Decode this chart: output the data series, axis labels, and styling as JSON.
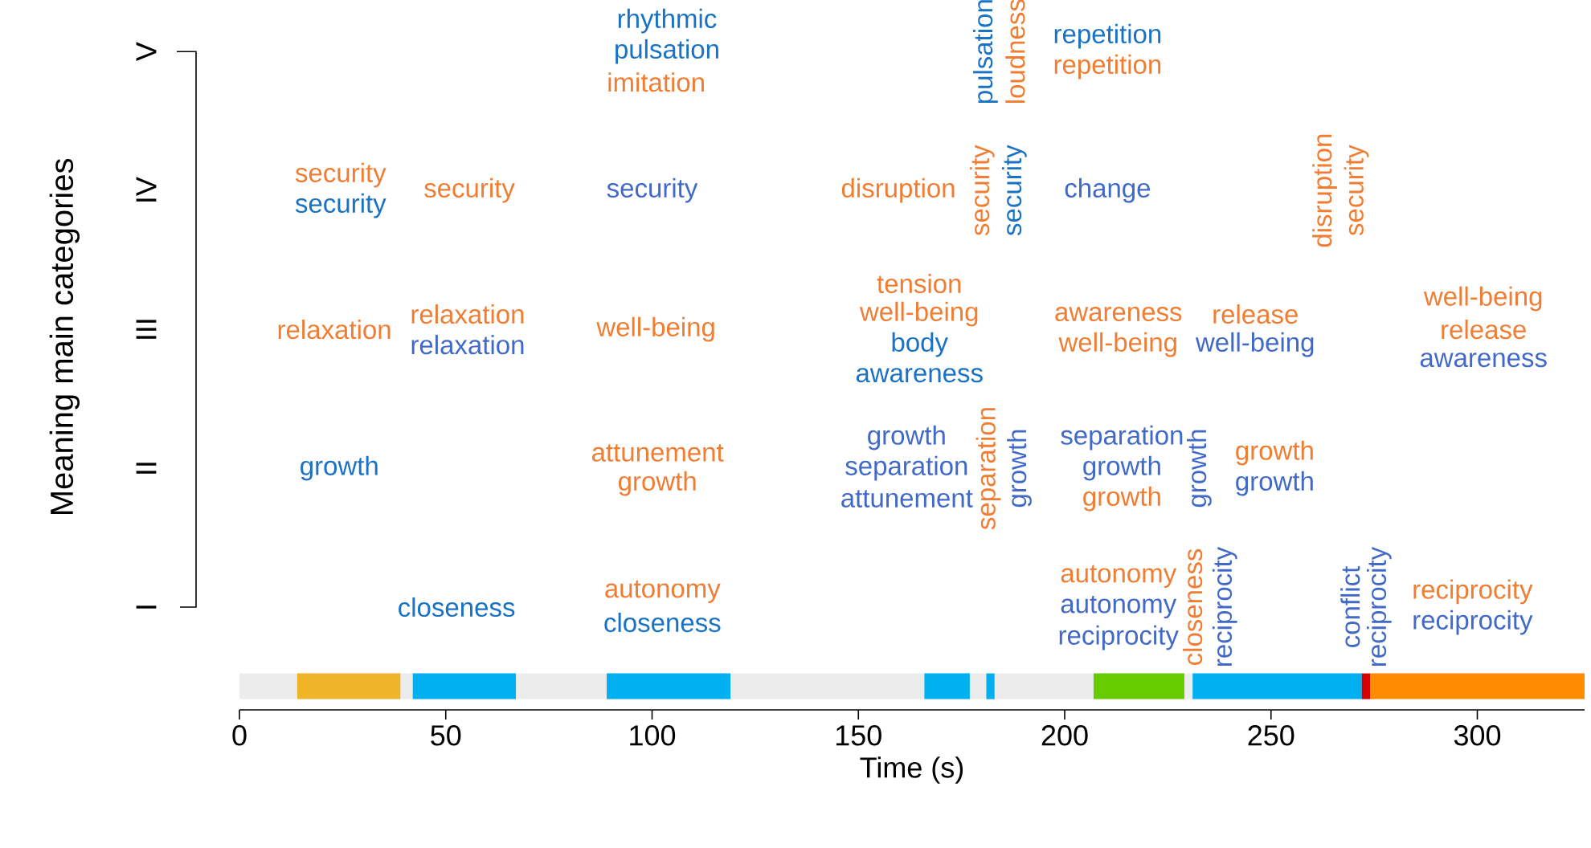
{
  "chart_data": {
    "type": "bar",
    "orientation": "horizontal",
    "xlabel": "Time (s)",
    "ylabel": "Meaning main categories",
    "xlim": [
      0,
      326
    ],
    "xticks": [
      0,
      50,
      100,
      150,
      200,
      250,
      300
    ],
    "categories": [
      "V",
      "IV",
      "III",
      "II",
      "I",
      null
    ],
    "series": [
      {
        "color": "#f0b429",
        "values": [
          null,
          null,
          null,
          null,
          null,
          25
        ],
        "base": [
          null,
          null,
          null,
          null,
          null,
          14
        ]
      },
      {
        "color": "#00b0f0",
        "values": [
          null,
          null,
          null,
          null,
          null,
          25
        ],
        "base": [
          null,
          null,
          null,
          null,
          null,
          42
        ]
      },
      {
        "color": "#00b0f0",
        "values": [
          null,
          null,
          null,
          null,
          null,
          30
        ],
        "base": [
          null,
          null,
          null,
          null,
          null,
          89
        ]
      },
      {
        "color": "#00b0f0",
        "values": [
          null,
          null,
          null,
          null,
          null,
          11
        ],
        "base": [
          null,
          null,
          null,
          null,
          null,
          166
        ]
      },
      {
        "color": "#00b0f0",
        "values": [
          null,
          null,
          null,
          null,
          null,
          2
        ],
        "base": [
          null,
          null,
          null,
          null,
          null,
          181
        ]
      },
      {
        "color": "#66cc00",
        "values": [
          null,
          null,
          null,
          null,
          null,
          22
        ],
        "base": [
          null,
          null,
          null,
          null,
          null,
          207
        ]
      },
      {
        "color": "#00b0f0",
        "values": [
          null,
          null,
          null,
          null,
          null,
          41
        ],
        "base": [
          null,
          null,
          null,
          null,
          null,
          231
        ]
      },
      {
        "color": "#d40000",
        "values": [
          null,
          null,
          null,
          null,
          null,
          2
        ],
        "base": [
          null,
          null,
          null,
          null,
          null,
          272
        ]
      },
      {
        "color": "#ff8c00",
        "values": [
          null,
          null,
          null,
          null,
          null,
          52
        ],
        "base": [
          null,
          null,
          null,
          null,
          null,
          274
        ]
      }
    ],
    "annotations": [
      "rhythmic",
      "pulsation",
      "repetition",
      "security",
      "security",
      "relaxation",
      "relaxation",
      "well-being",
      "attunement",
      "growth",
      "autonomy",
      "disruption",
      "tension",
      "well-being",
      "awareness",
      "well-being",
      "release",
      "well-being",
      "release",
      "growth",
      "autonomy",
      "reciprocity",
      "security",
      "growth",
      "closeness",
      "closeness",
      "body",
      "awareness",
      "security",
      "relaxation",
      "change",
      "well-being",
      "awareness",
      "growth",
      "separation",
      "attunement",
      "separation",
      "growth",
      "growth",
      "autonomy",
      "reciprocity",
      "reciprocity",
      "imitation",
      "repetition",
      "growth",
      "loudness",
      "security",
      "disruption",
      "security",
      "separation",
      "closeness",
      "pulsation",
      "security",
      "growth",
      "growth",
      "reciprocity",
      "conflict",
      "reciprocity"
    ]
  }
}
